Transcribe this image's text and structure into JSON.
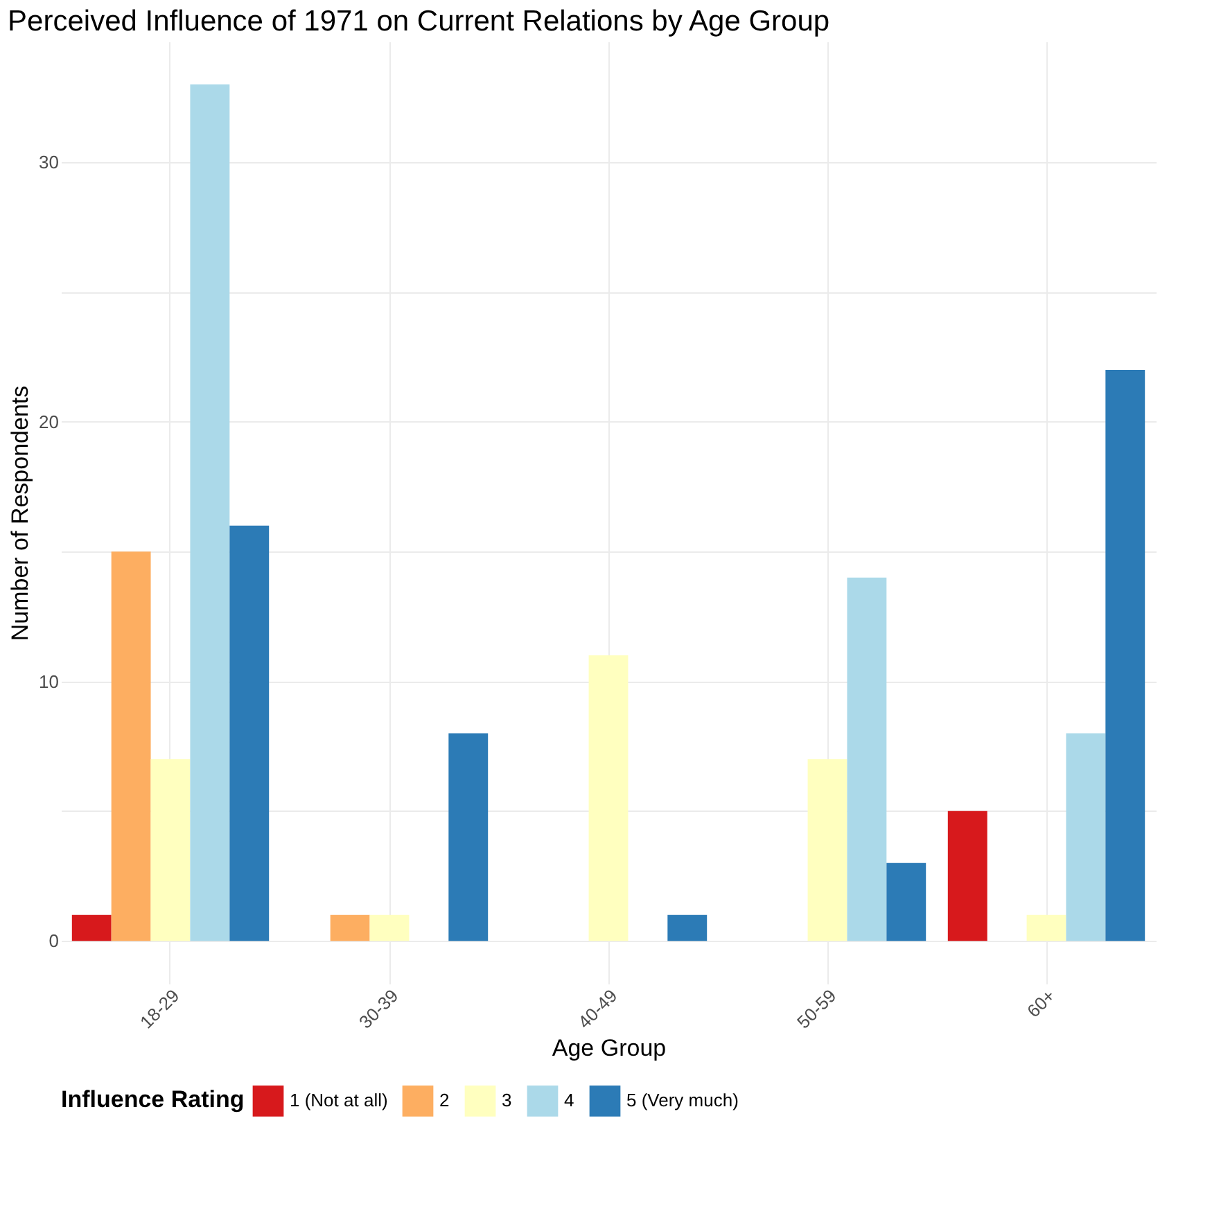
{
  "chart_data": {
    "type": "bar",
    "title": "Perceived Influence of 1971 on Current Relations by Age Group",
    "xlabel": "Age Group",
    "ylabel": "Number of Respondents",
    "legend_title": "Influence Rating",
    "categories": [
      "18-29",
      "30-39",
      "40-49",
      "50-59",
      "60+"
    ],
    "series": [
      {
        "name": "1 (Not at all)",
        "color": "#d7191c",
        "values": [
          1,
          null,
          null,
          null,
          5
        ]
      },
      {
        "name": "2",
        "color": "#fdae61",
        "values": [
          15,
          1,
          null,
          null,
          null
        ]
      },
      {
        "name": "3",
        "color": "#ffffbf",
        "values": [
          7,
          1,
          11,
          7,
          1
        ]
      },
      {
        "name": "4",
        "color": "#abd9e9",
        "values": [
          33,
          null,
          null,
          14,
          8
        ]
      },
      {
        "name": "5 (Very much)",
        "color": "#2c7bb6",
        "values": [
          16,
          8,
          1,
          3,
          22
        ]
      }
    ],
    "ylim": [
      -1.65,
      34.65
    ],
    "yticks": [
      0,
      {
        "value": 5,
        "label": null
      },
      10,
      {
        "value": 15,
        "label": null
      },
      20,
      {
        "value": 25,
        "label": null
      },
      30
    ],
    "grid": true,
    "legend": "bottom"
  }
}
